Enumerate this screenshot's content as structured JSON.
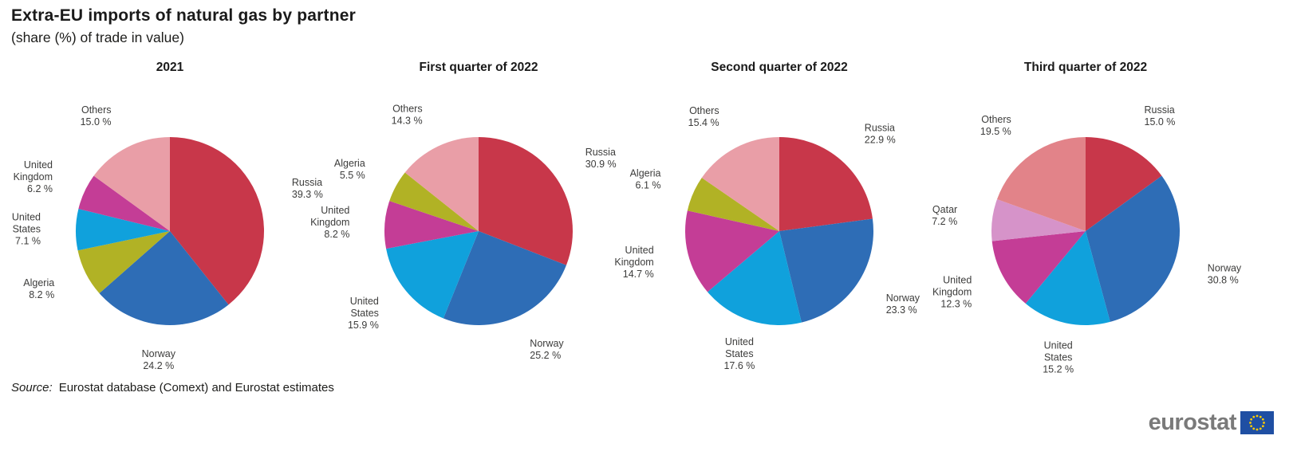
{
  "header": {
    "title": "Extra-EU imports of natural gas by partner",
    "subtitle": "(share (%) of trade in value)"
  },
  "chart_data": [
    {
      "type": "pie",
      "title": "2021",
      "unit": "%",
      "value_suffix": " %",
      "slices": [
        {
          "label": "Russia",
          "value": 39.3,
          "color": "#c8374a"
        },
        {
          "label": "Norway",
          "value": 24.2,
          "color": "#2e6db6"
        },
        {
          "label": "Algeria",
          "value": 8.2,
          "color": "#b1b225"
        },
        {
          "label": "United States",
          "value": 7.1,
          "color": "#10a1dc"
        },
        {
          "label": "United Kingdom",
          "value": 6.2,
          "color": "#c43d96"
        },
        {
          "label": "Others",
          "value": 15.0,
          "color": "#e99ea7"
        }
      ]
    },
    {
      "type": "pie",
      "title": "First quarter of 2022",
      "unit": "%",
      "value_suffix": " %",
      "slices": [
        {
          "label": "Russia",
          "value": 30.9,
          "color": "#c8374a"
        },
        {
          "label": "Norway",
          "value": 25.2,
          "color": "#2e6db6"
        },
        {
          "label": "United States",
          "value": 15.9,
          "color": "#10a1dc"
        },
        {
          "label": "United Kingdom",
          "value": 8.2,
          "color": "#c43d96"
        },
        {
          "label": "Algeria",
          "value": 5.5,
          "color": "#b1b225"
        },
        {
          "label": "Others",
          "value": 14.3,
          "color": "#e99ea7"
        }
      ]
    },
    {
      "type": "pie",
      "title": "Second quarter of 2022",
      "unit": "%",
      "value_suffix": " %",
      "slices": [
        {
          "label": "Russia",
          "value": 22.9,
          "color": "#c8374a"
        },
        {
          "label": "Norway",
          "value": 23.3,
          "color": "#2e6db6"
        },
        {
          "label": "United States",
          "value": 17.6,
          "color": "#10a1dc"
        },
        {
          "label": "United Kingdom",
          "value": 14.7,
          "color": "#c43d96"
        },
        {
          "label": "Algeria",
          "value": 6.1,
          "color": "#b1b225"
        },
        {
          "label": "Others",
          "value": 15.4,
          "color": "#e99ea7"
        }
      ]
    },
    {
      "type": "pie",
      "title": "Third quarter of 2022",
      "unit": "%",
      "value_suffix": " %",
      "slices": [
        {
          "label": "Russia",
          "value": 15.0,
          "color": "#c8374a"
        },
        {
          "label": "Norway",
          "value": 30.8,
          "color": "#2e6db6"
        },
        {
          "label": "United States",
          "value": 15.2,
          "color": "#10a1dc"
        },
        {
          "label": "United Kingdom",
          "value": 12.3,
          "color": "#c43d96"
        },
        {
          "label": "Qatar",
          "value": 7.2,
          "color": "#d693c9"
        },
        {
          "label": "Others",
          "value": 19.5,
          "color": "#e28389"
        }
      ]
    }
  ],
  "source": {
    "label": "Source:",
    "text": "Eurostat database (Comext) and Eurostat estimates"
  },
  "footer_logo": {
    "text": "eurostat",
    "flag_bg": "#1f4fa3",
    "flag_stars": "#ffcc00"
  }
}
